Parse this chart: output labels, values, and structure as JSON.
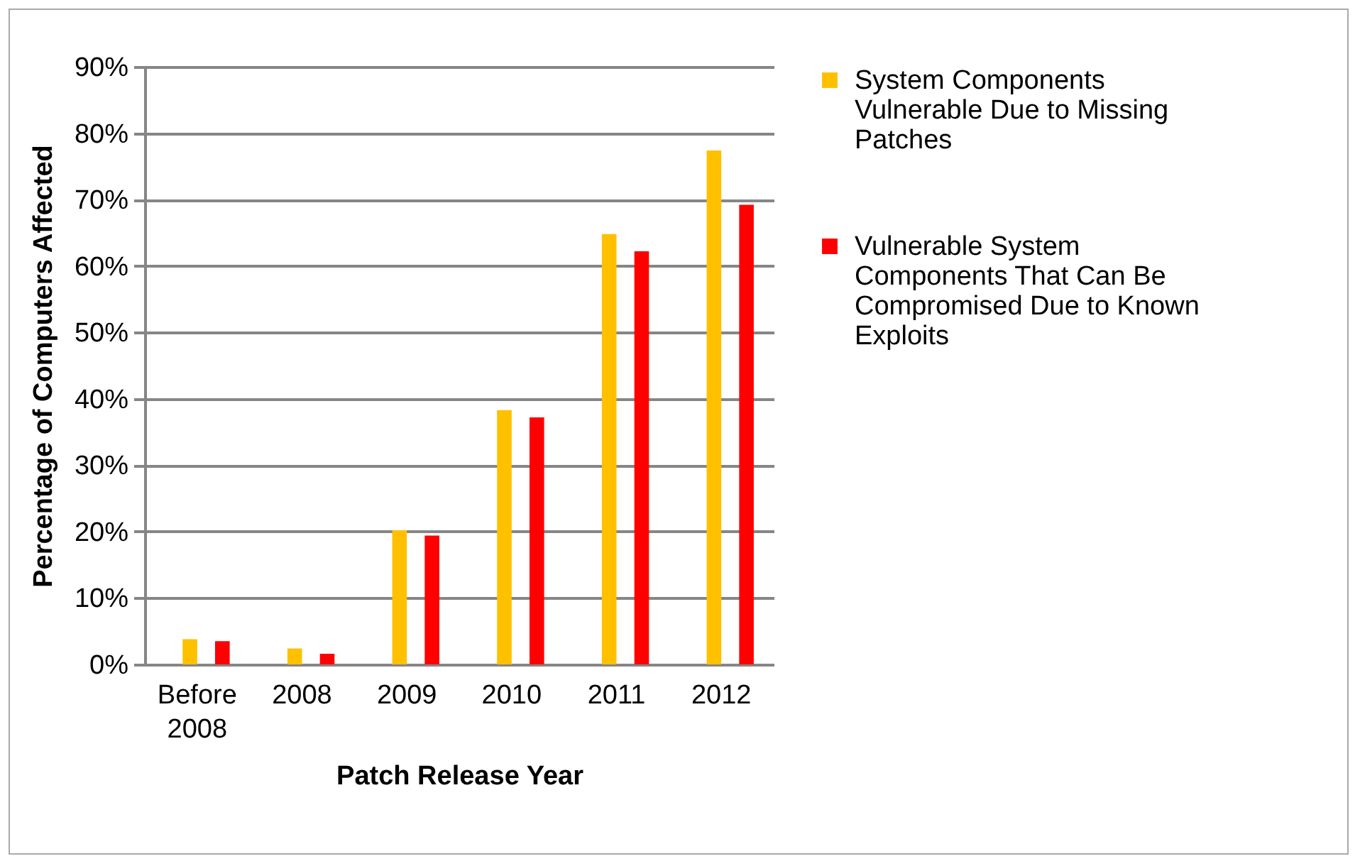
{
  "chart_data": {
    "type": "bar",
    "xlabel": "Patch Release Year",
    "ylabel": "Percentage of Computers Affected",
    "categories": [
      "Before 2008",
      "2008",
      "2009",
      "2010",
      "2011",
      "2012"
    ],
    "series": [
      {
        "name": "System Components Vulnerable Due to Missing Patches",
        "color": "#ffc000",
        "values": [
          3.8,
          2.4,
          20.2,
          38.3,
          64.8,
          77.4
        ]
      },
      {
        "name": "Vulnerable System Components That Can Be Compromised Due to Known Exploits",
        "color": "#ff0000",
        "values": [
          3.5,
          1.6,
          19.4,
          37.2,
          62.2,
          69.2
        ]
      }
    ],
    "ylim": [
      0,
      90
    ],
    "yticks": [
      {
        "value": 0,
        "label": "0%"
      },
      {
        "value": 10,
        "label": "10%"
      },
      {
        "value": 20,
        "label": "20%"
      },
      {
        "value": 30,
        "label": "30%"
      },
      {
        "value": 40,
        "label": "40%"
      },
      {
        "value": 50,
        "label": "50%"
      },
      {
        "value": 60,
        "label": "60%"
      },
      {
        "value": 70,
        "label": "70%"
      },
      {
        "value": 80,
        "label": "80%"
      },
      {
        "value": 90,
        "label": "90%"
      }
    ],
    "grid": true,
    "legend": "right"
  }
}
